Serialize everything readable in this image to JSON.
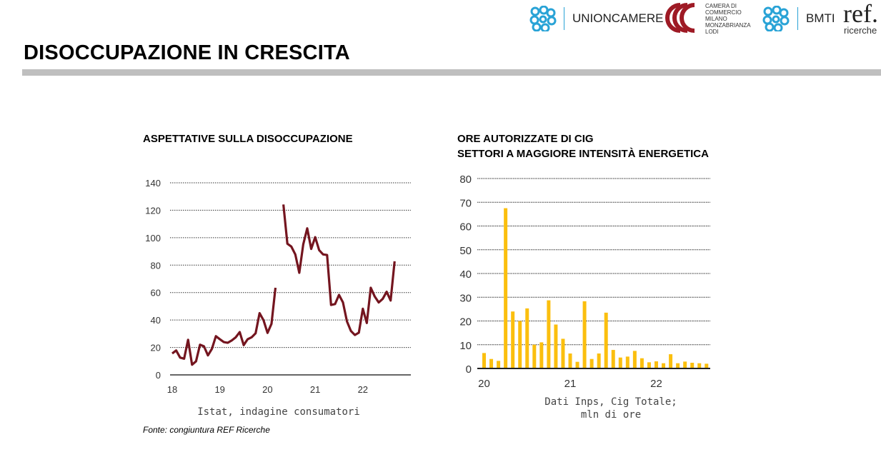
{
  "header": {
    "title": "DISOCCUPAZIONE IN CRESCITA",
    "logos": {
      "unioncamere": "UNIONCAMERE",
      "camera": [
        "CAMERA DI",
        "COMMERCIO",
        "MILANO",
        "MONZABRIANZA",
        "LODI"
      ],
      "bmti": "BMTI",
      "ref_main": "ref.",
      "ref_sub": "ricerche"
    }
  },
  "footer": {
    "source": "Fonte: congiuntura REF Ricerche"
  },
  "colors": {
    "line": "#74151f",
    "bars": "#fbbf0e",
    "title_bar": "#bfbfbf",
    "logo_blue": "#29a3d6",
    "logo_red": "#9e1a25"
  },
  "chart_data": [
    {
      "type": "line",
      "title": "ASPETTATIVE SULLA DISOCCUPAZIONE",
      "caption": "Istat, indagine consumatori",
      "xlabel": "",
      "ylabel": "",
      "ylim": [
        0,
        140
      ],
      "yticks": [
        "0",
        "20",
        "40",
        "60",
        "80",
        "100",
        "120",
        "140"
      ],
      "xticks": [
        "18",
        "19",
        "20",
        "21",
        "22"
      ],
      "grid": true,
      "x_start": "2018-01",
      "frequency": "monthly",
      "values": [
        15.6,
        17.8,
        12.6,
        11.8,
        25.6,
        7.4,
        9.9,
        22,
        20.8,
        14.2,
        19,
        28.2,
        26,
        23.9,
        23.4,
        25.1,
        27.4,
        31.2,
        21.7,
        26,
        27.4,
        30.3,
        45,
        39.8,
        30.6,
        37.2,
        63.5,
        null,
        124.2,
        95.6,
        93.5,
        87.8,
        74.4,
        95.2,
        106.8,
        91.8,
        100.4,
        90.9,
        87.8,
        87.4,
        51,
        51.6,
        58.3,
        52.8,
        39,
        32,
        29.1,
        30.8,
        48.2,
        37.8,
        63.5,
        57.1,
        52.8,
        55.4,
        60.6,
        54.2,
        82.8
      ]
    },
    {
      "type": "bar",
      "title": [
        "ORE AUTORIZZATE DI CIG",
        "SETTORI A MAGGIORE INTENSITÀ ENERGETICA"
      ],
      "caption": [
        "Dati Inps, Cig Totale;",
        "mln di ore"
      ],
      "xlabel": "",
      "ylabel": "",
      "ylim": [
        0,
        80
      ],
      "yticks": [
        "0",
        "10",
        "20",
        "30",
        "40",
        "50",
        "60",
        "70",
        "80"
      ],
      "xticks": [
        "20",
        "21",
        "22"
      ],
      "grid": true,
      "x_start": "2020-01",
      "frequency": "monthly",
      "values": [
        6.5,
        4,
        3.2,
        67.5,
        24,
        20,
        25.3,
        10,
        11,
        28.7,
        18.5,
        12.5,
        6.3,
        2.8,
        28.3,
        4,
        6.3,
        23.5,
        7.8,
        4.6,
        5,
        7.4,
        4.3,
        2.6,
        3,
        2.2,
        6,
        2.2,
        2.9,
        2.4,
        2.2,
        2.0
      ]
    }
  ]
}
